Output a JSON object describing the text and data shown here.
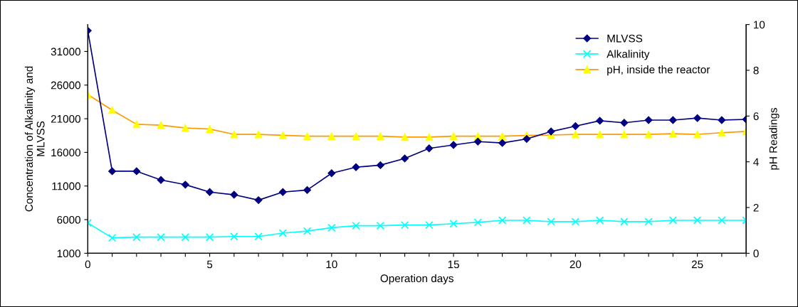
{
  "chart_data": {
    "type": "line",
    "xlabel": "Operation days",
    "ylabel": "Concentration of Alkalinity and\nMLVSS",
    "y2label": "pH Readings",
    "x": [
      0,
      1,
      2,
      3,
      4,
      5,
      6,
      7,
      8,
      9,
      10,
      11,
      12,
      13,
      14,
      15,
      16,
      17,
      18,
      19,
      20,
      21,
      22,
      23,
      24,
      25,
      26,
      27
    ],
    "series": [
      {
        "name": "MLVSS",
        "color": "#000080",
        "marker": "diamond",
        "values": [
          34100,
          13200,
          13200,
          11900,
          11200,
          10100,
          9700,
          8900,
          10100,
          10400,
          12900,
          13800,
          14100,
          15100,
          16600,
          17100,
          17600,
          17400,
          18000,
          19100,
          19900,
          20700,
          20400,
          20800,
          20800,
          21100,
          20800,
          20900
        ]
      },
      {
        "name": "Alkalinity",
        "color": "#00ffff",
        "marker": "cross",
        "values": [
          5500,
          3300,
          3400,
          3400,
          3400,
          3400,
          3500,
          3500,
          4000,
          4300,
          4800,
          5100,
          5100,
          5200,
          5200,
          5400,
          5600,
          5900,
          5900,
          5700,
          5700,
          5900,
          5700,
          5700,
          5900,
          5900,
          5900,
          5900
        ]
      },
      {
        "name": "pH, inside the reactor",
        "color": "#ff9900",
        "marker": "triangle",
        "axis": "y2",
        "colors": [
          "#ffff00",
          "#ffff00",
          "#ffff00",
          "#ffff00",
          "#ffff00",
          "#ffff00",
          "#ffff00",
          "#ffff00",
          "#ffff00",
          "#ffff00",
          "#ffff00",
          "#ffff00",
          "#ffff00",
          "#ffff00",
          "#ffff00",
          "#ffff00",
          "#ffff00",
          "#ffff00",
          "#ffff00",
          "#ffff00",
          "#ffff00",
          "#ffff00",
          "#ffff00",
          "#ffff00",
          "#ffff00",
          "#ffff00",
          "#ffff00",
          "#ffff00"
        ],
        "values": [
          6.94,
          6.26,
          5.64,
          5.6,
          5.48,
          5.43,
          5.2,
          5.2,
          5.16,
          5.12,
          5.12,
          5.12,
          5.12,
          5.08,
          5.08,
          5.12,
          5.12,
          5.12,
          5.15,
          5.17,
          5.2,
          5.2,
          5.2,
          5.2,
          5.23,
          5.2,
          5.27,
          5.33
        ]
      }
    ],
    "xlim": [
      0,
      27
    ],
    "xticks": [
      0,
      {
        "value": 1,
        "label": null
      },
      {
        "value": 2,
        "label": null
      },
      {
        "value": 3,
        "label": null
      },
      {
        "value": 4,
        "label": null
      },
      5,
      {
        "value": 6,
        "label": null
      },
      {
        "value": 7,
        "label": null
      },
      {
        "value": 8,
        "label": null
      },
      {
        "value": 9,
        "label": null
      },
      10,
      {
        "value": 11,
        "label": null
      },
      {
        "value": 12,
        "label": null
      },
      {
        "value": 13,
        "label": null
      },
      {
        "value": 14,
        "label": null
      },
      15,
      {
        "value": 16,
        "label": null
      },
      {
        "value": 17,
        "label": null
      },
      {
        "value": 18,
        "label": null
      },
      {
        "value": 19,
        "label": null
      },
      20,
      {
        "value": 21,
        "label": null
      },
      {
        "value": 22,
        "label": null
      },
      {
        "value": 23,
        "label": null
      },
      {
        "value": 24,
        "label": null
      },
      25,
      {
        "value": 26,
        "label": null
      },
      {
        "value": 27,
        "label": null
      }
    ],
    "ylim": [
      1000,
      35000
    ],
    "yticks": [
      1000,
      6000,
      11000,
      16000,
      21000,
      26000,
      31000
    ],
    "y2lim": [
      0,
      10
    ],
    "y2ticks": [
      0,
      2,
      4,
      6,
      8,
      10
    ],
    "grid": false,
    "legend": "top right",
    "line_style": "solid"
  }
}
